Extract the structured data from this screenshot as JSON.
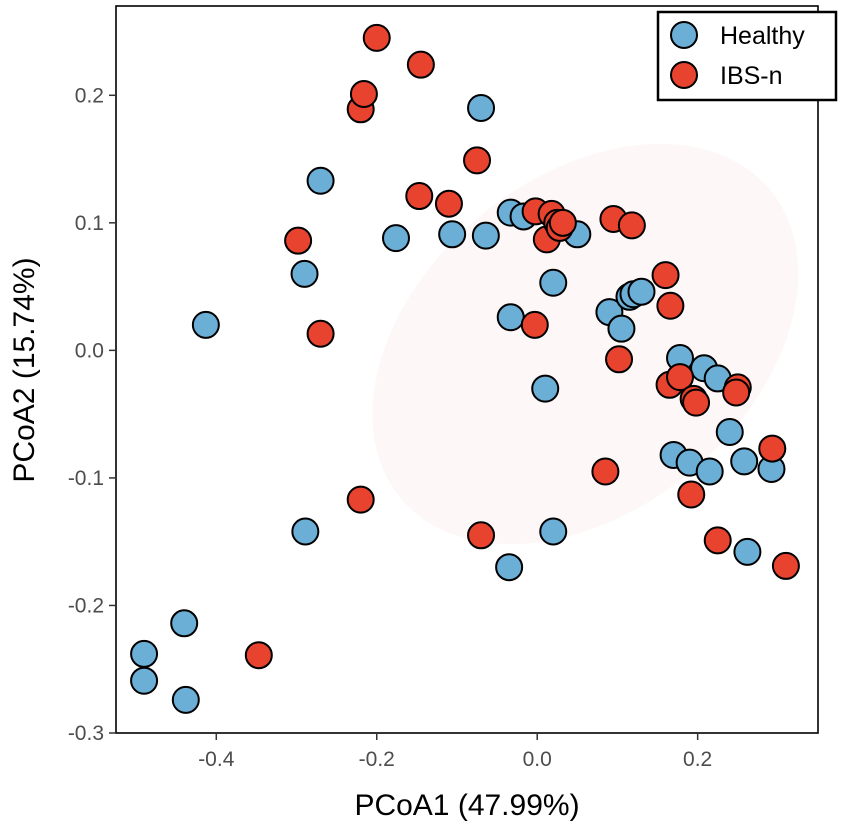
{
  "chart_data": {
    "type": "scatter",
    "title": "",
    "xlabel": "PCoA1 (47.99%)",
    "ylabel": "PCoA2 (15.74%)",
    "xlim": [
      -0.525,
      0.35
    ],
    "ylim": [
      -0.3,
      0.27
    ],
    "xticks": [
      -0.4,
      -0.2,
      0.0,
      0.2
    ],
    "xtick_labels": [
      "-0.4",
      "-0.2",
      "0.0",
      "0.2"
    ],
    "yticks": [
      -0.3,
      -0.2,
      -0.1,
      0.0,
      0.1,
      0.2
    ],
    "ytick_labels": [
      "-0.3",
      "-0.2",
      "-0.1",
      "0.0",
      "0.1",
      "0.2"
    ],
    "grid": false,
    "legend": {
      "position": "top-right",
      "entries": [
        "Healthy",
        "IBS-n"
      ]
    },
    "confidence_ellipse": {
      "center": [
        0.06,
        0.005
      ],
      "semi_axes": [
        0.3,
        0.13
      ],
      "angle_deg": -40,
      "color": "#fdf7f8"
    },
    "series": [
      {
        "name": "Healthy",
        "color": "#6baed6",
        "points": [
          [
            -0.49,
            -0.238
          ],
          [
            -0.49,
            -0.259
          ],
          [
            -0.44,
            -0.214
          ],
          [
            -0.438,
            -0.274
          ],
          [
            -0.413,
            0.02
          ],
          [
            -0.289,
            -0.142
          ],
          [
            -0.29,
            0.06
          ],
          [
            -0.27,
            0.133
          ],
          [
            -0.176,
            0.088
          ],
          [
            -0.106,
            0.091
          ],
          [
            -0.07,
            0.19
          ],
          [
            -0.064,
            0.09
          ],
          [
            -0.033,
            0.108
          ],
          [
            -0.033,
            0.026
          ],
          [
            -0.017,
            0.105
          ],
          [
            -0.035,
            -0.17
          ],
          [
            0.01,
            -0.03
          ],
          [
            0.02,
            -0.142
          ],
          [
            0.02,
            0.053
          ],
          [
            0.05,
            0.091
          ],
          [
            0.09,
            0.03
          ],
          [
            0.105,
            0.017
          ],
          [
            0.115,
            0.042
          ],
          [
            0.12,
            0.044
          ],
          [
            0.13,
            0.046
          ],
          [
            0.178,
            -0.006
          ],
          [
            0.17,
            -0.082
          ],
          [
            0.19,
            -0.088
          ],
          [
            0.208,
            -0.014
          ],
          [
            0.215,
            -0.095
          ],
          [
            0.225,
            -0.022
          ],
          [
            0.24,
            -0.064
          ],
          [
            0.258,
            -0.087
          ],
          [
            0.262,
            -0.158
          ],
          [
            0.292,
            -0.093
          ]
        ]
      },
      {
        "name": "IBS-n",
        "color": "#e8432e",
        "points": [
          [
            -0.347,
            -0.239
          ],
          [
            -0.298,
            0.086
          ],
          [
            -0.27,
            0.013
          ],
          [
            -0.22,
            -0.117
          ],
          [
            -0.22,
            0.189
          ],
          [
            -0.216,
            0.201
          ],
          [
            -0.2,
            0.245
          ],
          [
            -0.145,
            0.224
          ],
          [
            -0.147,
            0.121
          ],
          [
            -0.11,
            0.115
          ],
          [
            -0.075,
            0.149
          ],
          [
            -0.07,
            -0.145
          ],
          [
            -0.003,
            0.02
          ],
          [
            -0.002,
            0.109
          ],
          [
            0.012,
            0.087
          ],
          [
            0.018,
            0.107
          ],
          [
            0.025,
            0.1
          ],
          [
            0.028,
            0.096
          ],
          [
            0.032,
            0.1
          ],
          [
            0.085,
            -0.095
          ],
          [
            0.095,
            0.103
          ],
          [
            0.102,
            -0.007
          ],
          [
            0.118,
            0.098
          ],
          [
            0.16,
            0.059
          ],
          [
            0.165,
            -0.027
          ],
          [
            0.166,
            0.035
          ],
          [
            0.178,
            -0.021
          ],
          [
            0.192,
            -0.113
          ],
          [
            0.195,
            -0.038
          ],
          [
            0.198,
            -0.041
          ],
          [
            0.225,
            -0.149
          ],
          [
            0.25,
            -0.029
          ],
          [
            0.248,
            -0.033
          ],
          [
            0.293,
            -0.077
          ],
          [
            0.31,
            -0.169
          ]
        ]
      }
    ]
  }
}
